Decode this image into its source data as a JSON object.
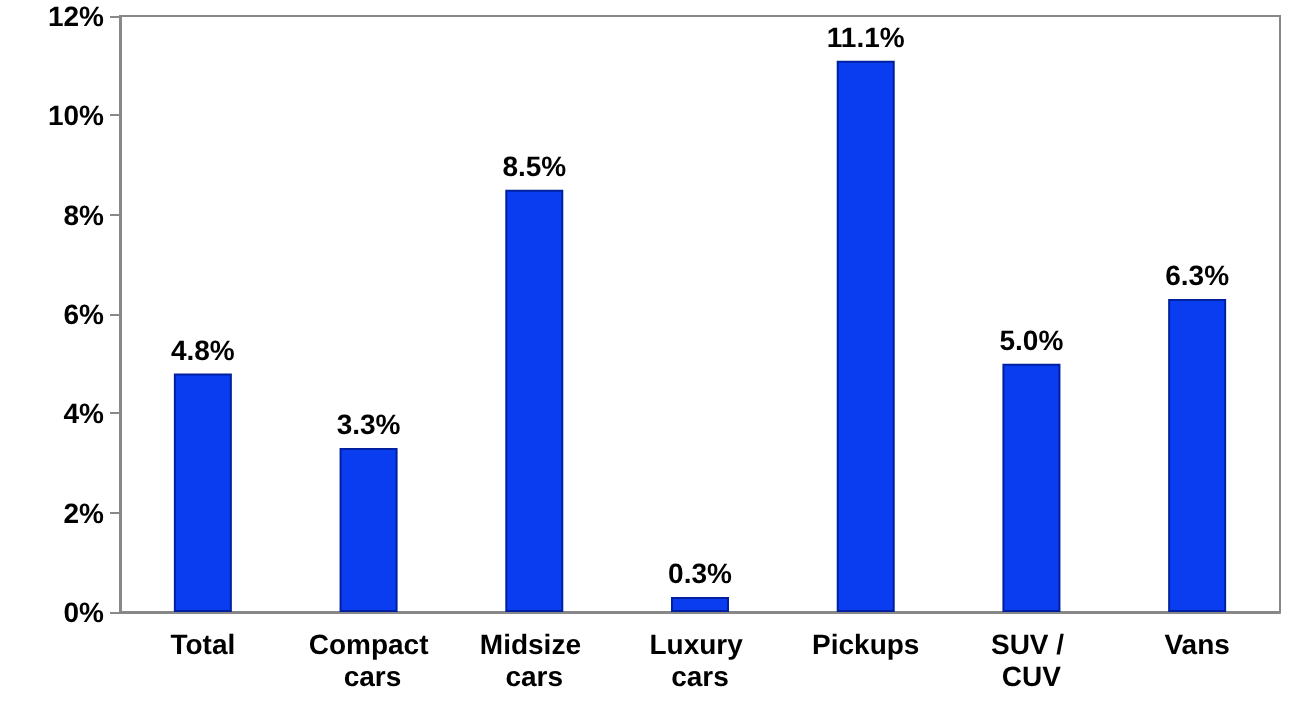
{
  "chart_data": {
    "type": "bar",
    "categories": [
      "Total",
      "Compact cars",
      "Midsize cars",
      "Luxury cars",
      "Pickups",
      "SUV / CUV",
      "Vans"
    ],
    "values": [
      4.8,
      3.3,
      8.5,
      0.3,
      11.1,
      5.0,
      6.3
    ],
    "value_labels": [
      "4.8%",
      "3.3%",
      "8.5%",
      "0.3%",
      "11.1%",
      "5.0%",
      "6.3%"
    ],
    "color": "#0a3cf0",
    "ylim": [
      0,
      12
    ],
    "yticks": [
      {
        "value": 0,
        "label": "0%"
      },
      {
        "value": 2,
        "label": "2%"
      },
      {
        "value": 4,
        "label": "4%"
      },
      {
        "value": 6,
        "label": "6%"
      },
      {
        "value": 8,
        "label": "8%"
      },
      {
        "value": 10,
        "label": "10%"
      },
      {
        "value": 12,
        "label": "12%"
      }
    ],
    "grid": false
  }
}
